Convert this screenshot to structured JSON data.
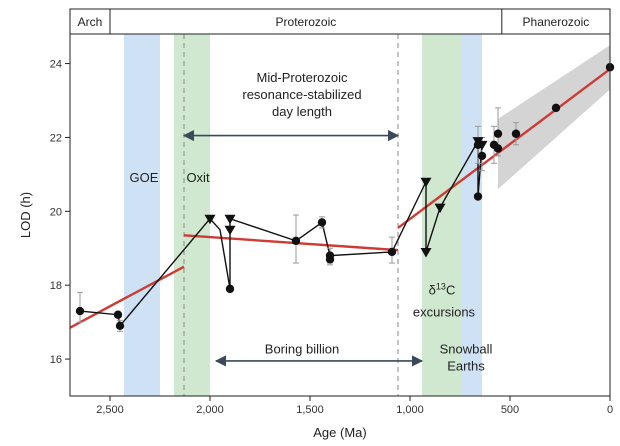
{
  "chart_data": {
    "type": "scatter",
    "xlabel": "Age (Ma)",
    "ylabel": "LOD (h)",
    "xlim": [
      2700,
      0
    ],
    "ylim": [
      15,
      24.8
    ],
    "xticks": [
      2500,
      2000,
      1500,
      1000,
      500,
      0
    ],
    "xtick_labels": [
      "2,500",
      "2,000",
      "1,500",
      "1,000",
      "500",
      "0"
    ],
    "yticks": [
      16,
      18,
      20,
      22,
      24
    ],
    "yticks_labels": [
      "16",
      "18",
      "20",
      "22",
      "24"
    ],
    "eons": [
      {
        "label": "Arch",
        "start": 2700,
        "end": 2500
      },
      {
        "label": "Proterozoic",
        "start": 2500,
        "end": 541
      },
      {
        "label": "Phanerozoic",
        "start": 541,
        "end": 0
      }
    ],
    "bands": [
      {
        "name": "goe",
        "start": 2430,
        "end": 2250,
        "color": "#cfe2f5"
      },
      {
        "name": "oxit",
        "start": 2180,
        "end": 2000,
        "color": "#cfe8cf"
      },
      {
        "name": "d13c",
        "start": 940,
        "end": 740,
        "color": "#cfe8cf"
      },
      {
        "name": "snowball",
        "start": 740,
        "end": 640,
        "color": "#cfe2f5"
      }
    ],
    "vlines": [
      2130,
      1060
    ],
    "circles": [
      {
        "x": 2650,
        "y": 17.3,
        "lo": 17.0,
        "hi": 17.8
      },
      {
        "x": 2460,
        "y": 17.2
      },
      {
        "x": 2450,
        "y": 16.9,
        "lo": 16.75,
        "hi": 17.05
      },
      {
        "x": 1900,
        "y": 17.9
      },
      {
        "x": 1570,
        "y": 19.2,
        "lo": 18.6,
        "hi": 19.9
      },
      {
        "x": 1440,
        "y": 19.7,
        "lo": 19.55,
        "hi": 19.85
      },
      {
        "x": 1400,
        "y": 18.8,
        "lo": 18.6,
        "hi": 19.0
      },
      {
        "x": 1400,
        "y": 18.7,
        "lo": 18.55,
        "hi": 18.85
      },
      {
        "x": 1090,
        "y": 18.9,
        "lo": 18.6,
        "hi": 19.3
      },
      {
        "x": 660,
        "y": 20.4
      },
      {
        "x": 660,
        "y": 21.8,
        "lo": 21.3,
        "hi": 22.3
      },
      {
        "x": 640,
        "y": 21.5,
        "lo": 21.1,
        "hi": 22.0
      },
      {
        "x": 580,
        "y": 21.8,
        "lo": 21.3,
        "hi": 22.3
      },
      {
        "x": 560,
        "y": 22.1,
        "lo": 21.5,
        "hi": 22.8
      },
      {
        "x": 560,
        "y": 21.7
      },
      {
        "x": 470,
        "y": 22.1,
        "lo": 21.8,
        "hi": 22.4
      },
      {
        "x": 270,
        "y": 22.8
      },
      {
        "x": 0,
        "y": 23.9
      }
    ],
    "triangles": [
      {
        "x": 2000,
        "y": 19.8
      },
      {
        "x": 1900,
        "y": 19.8
      },
      {
        "x": 1900,
        "y": 19.5
      },
      {
        "x": 920,
        "y": 20.8
      },
      {
        "x": 920,
        "y": 18.9
      },
      {
        "x": 850,
        "y": 20.1
      },
      {
        "x": 660,
        "y": 21.9
      },
      {
        "x": 640,
        "y": 21.8
      }
    ],
    "black_path": [
      [
        2650,
        17.3
      ],
      [
        2460,
        17.2
      ],
      [
        2450,
        16.9
      ],
      [
        2000,
        19.8
      ],
      [
        1950,
        19.5
      ],
      [
        1900,
        17.9
      ],
      [
        1900,
        19.8
      ],
      [
        1570,
        19.2
      ],
      [
        1440,
        19.7
      ],
      [
        1400,
        18.8
      ],
      [
        1090,
        18.9
      ],
      [
        920,
        20.8
      ],
      [
        920,
        18.9
      ],
      [
        850,
        20.1
      ],
      [
        660,
        21.9
      ],
      [
        640,
        21.8
      ],
      [
        660,
        20.4
      ],
      [
        660,
        21.8
      ]
    ],
    "red_fits": [
      [
        [
          2700,
          16.85
        ],
        [
          2130,
          18.5
        ]
      ],
      [
        [
          2130,
          19.35
        ],
        [
          1060,
          18.95
        ]
      ],
      [
        [
          1060,
          19.55
        ],
        [
          0,
          23.85
        ]
      ]
    ],
    "shade": {
      "x1": 560,
      "x2": 0,
      "lo1": 20.6,
      "hi1": 22.5,
      "lo2": 23.3,
      "hi2": 24.5,
      "color": "#d4d4d4"
    },
    "annotations": [
      {
        "lines": [
          "Mid-Proterozoic",
          "resonance-stabilized",
          "day length"
        ],
        "x": 1540,
        "y": 23.5
      },
      {
        "lines": [
          "GOE"
        ],
        "x": 2330,
        "y": 20.8
      },
      {
        "lines": [
          "Oxit"
        ],
        "x": 2060,
        "y": 20.8
      },
      {
        "lines": [
          "excursions"
        ],
        "x": 830,
        "y": 17.15
      },
      {
        "lines": [
          "Boring billion"
        ],
        "x": 1540,
        "y": 16.15
      },
      {
        "lines": [
          "Snowball",
          "Earths"
        ],
        "x": 720,
        "y": 16.15
      }
    ],
    "d13c_label": {
      "delta": "δ",
      "sup": "13",
      "letter": "C",
      "x": 840,
      "y": 17.75
    },
    "arrows": [
      {
        "x1": 2130,
        "x2": 1060,
        "y": 22.05
      },
      {
        "x1": 1970,
        "x2": 940,
        "y": 15.95
      }
    ]
  }
}
